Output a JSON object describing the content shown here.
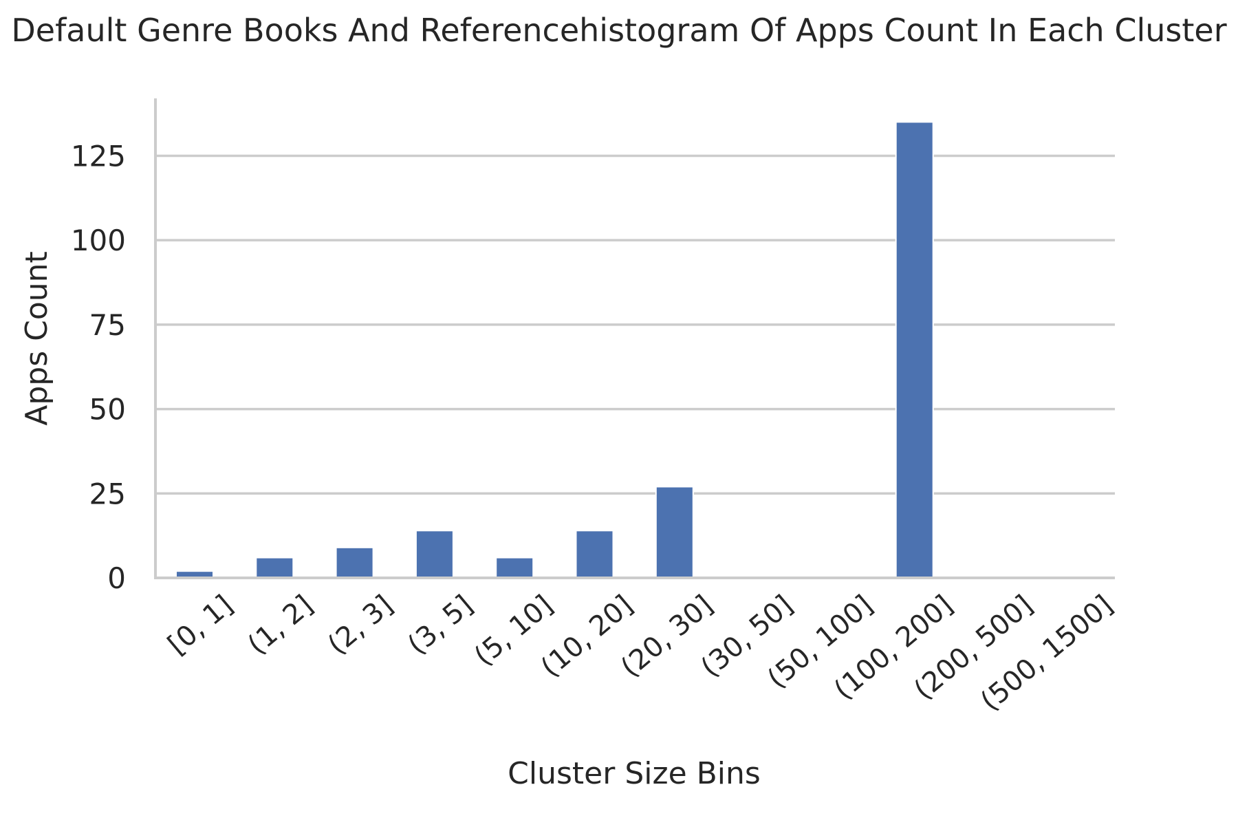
{
  "chart_data": {
    "type": "bar",
    "title": "Default Genre Books And Referencehistogram Of Apps Count In Each Cluster",
    "xlabel": "Cluster Size Bins",
    "ylabel": "Apps Count",
    "categories": [
      "[0, 1]",
      "(1, 2]",
      "(2, 3]",
      "(3, 5]",
      "(5, 10]",
      "(10, 20]",
      "(20, 30]",
      "(30, 50]",
      "(50, 100]",
      "(100, 200]",
      "(200, 500]",
      "(500, 1500]"
    ],
    "values": [
      2,
      6,
      9,
      14,
      6,
      14,
      27,
      0,
      0,
      135,
      0,
      0
    ],
    "ylim": [
      0,
      142
    ],
    "yticks": [
      0,
      25,
      50,
      75,
      100,
      125
    ],
    "grid": "y",
    "bar_color": "#4c72b0"
  }
}
